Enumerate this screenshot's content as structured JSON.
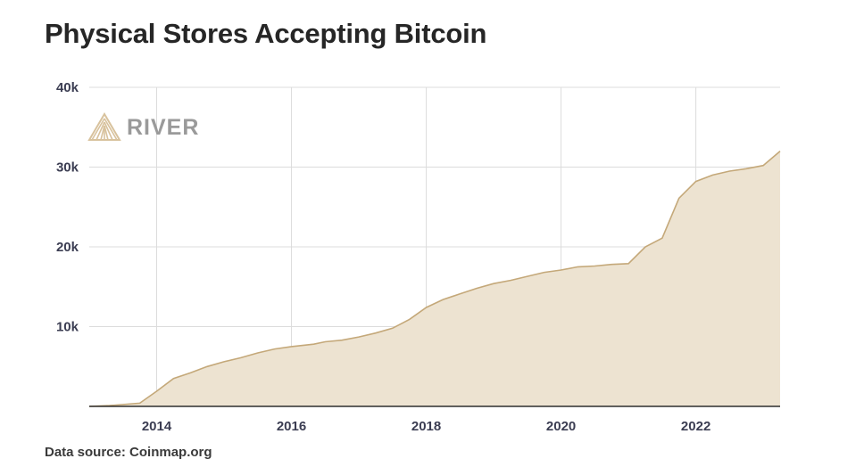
{
  "chart_data": {
    "type": "area",
    "title": "Physical Stores Accepting Bitcoin",
    "source": "Data source: Coinmap.org",
    "logo": "RIVER",
    "xlabel": "",
    "ylabel": "",
    "xlim": [
      2013.0,
      2023.25
    ],
    "ylim": [
      0,
      40000
    ],
    "x_ticks": [
      2014,
      2016,
      2018,
      2020,
      2022
    ],
    "x_tick_labels": [
      "2014",
      "2016",
      "2018",
      "2020",
      "2022"
    ],
    "y_ticks": [
      10000,
      20000,
      30000,
      40000
    ],
    "y_tick_labels": [
      "10k",
      "20k",
      "30k",
      "40k"
    ],
    "grid": true,
    "colors": {
      "fill": "#ede3d1",
      "line": "#c4a879",
      "grid": "#dcdcdc",
      "logo": "#d8c29d"
    },
    "series": [
      {
        "x": [
          2013.0,
          2013.3,
          2013.75,
          2014.0,
          2014.25,
          2014.5,
          2014.75,
          2015.0,
          2015.25,
          2015.5,
          2015.75,
          2016.0,
          2016.33,
          2016.5,
          2016.75,
          2017.0,
          2017.25,
          2017.5,
          2017.75,
          2018.0,
          2018.25,
          2018.5,
          2018.75,
          2019.0,
          2019.25,
          2019.5,
          2019.75,
          2020.0,
          2020.25,
          2020.5,
          2020.75,
          2021.0,
          2021.25,
          2021.5,
          2021.75,
          2022.0,
          2022.25,
          2022.5,
          2022.75,
          2023.0,
          2023.25
        ],
        "y": [
          0,
          100,
          400,
          1900,
          3500,
          4200,
          5000,
          5600,
          6100,
          6700,
          7200,
          7500,
          7800,
          8100,
          8300,
          8700,
          9200,
          9800,
          10900,
          12400,
          13400,
          14100,
          14800,
          15400,
          15800,
          16300,
          16800,
          17100,
          17500,
          17600,
          17800,
          17900,
          20000,
          21100,
          26100,
          28200,
          29000,
          29500,
          29800,
          30200,
          32000
        ]
      }
    ]
  }
}
